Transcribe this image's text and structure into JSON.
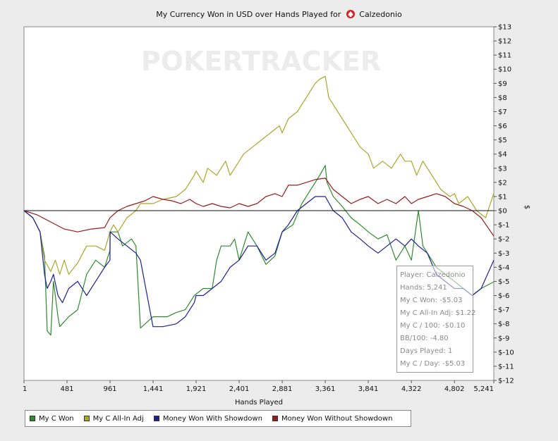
{
  "title": {
    "prefix": "My Currency Won in USD over Hands Played for",
    "player": "Calzedonio"
  },
  "watermark": "POKERTRACKER",
  "colors": {
    "my_c_won": "#2e8b2e",
    "my_c_allin_adj": "#a8a828",
    "showdown": "#1e1e96",
    "non_showdown": "#9a1a1a"
  },
  "tooltip": {
    "lines": [
      "Player: Calzedonio",
      "Hands: 5,241",
      "My C Won: -$5.03",
      "My C All-In Adj: $1.22",
      "My C / 100: -$0.10",
      "BB/100: -4.80",
      "Days Played: 1",
      "My C / Day: -$5.03"
    ]
  },
  "chart_data": {
    "type": "line",
    "title": "My Currency Won in USD over Hands Played for Calzedonio",
    "xlabel": "Hands Played",
    "ylabel": "$",
    "xlim": [
      1,
      5241
    ],
    "ylim": [
      -12,
      13
    ],
    "x_ticks": [
      1,
      481,
      961,
      1441,
      1921,
      2401,
      2881,
      3361,
      3841,
      4322,
      4802,
      5241
    ],
    "x_tick_labels": [
      "1",
      "481",
      "961",
      "1,441",
      "1,921",
      "2,401",
      "2,881",
      "3,361",
      "3,841",
      "4,322",
      "4,802",
      "5,241"
    ],
    "y_ticks": [
      13,
      12,
      11,
      10,
      9,
      8,
      7,
      6,
      5,
      4,
      3,
      2,
      1,
      0,
      -1,
      -2,
      -3,
      -4,
      -5,
      -6,
      -7,
      -8,
      -9,
      -10,
      -11,
      -12
    ],
    "y_tick_labels": [
      "$13",
      "$12",
      "$11",
      "$10",
      "$9",
      "$8",
      "$7",
      "$6",
      "$5",
      "$4",
      "$3",
      "$2",
      "$1",
      "$0",
      "$-1",
      "$-2",
      "$-3",
      "$-4",
      "$-5",
      "$-6",
      "$-7",
      "$-8",
      "$-9",
      "$-10",
      "$-11",
      "$-12"
    ],
    "legend_position": "bottom",
    "grid": false,
    "series": [
      {
        "name": "My C Won",
        "color": "#2e8b2e",
        "x": [
          1,
          100,
          180,
          230,
          260,
          300,
          330,
          380,
          400,
          500,
          600,
          700,
          800,
          900,
          960,
          962,
          1050,
          1100,
          1200,
          1250,
          1300,
          1440,
          1600,
          1700,
          1800,
          1900,
          2000,
          2100,
          2150,
          2200,
          2300,
          2350,
          2401,
          2500,
          2600,
          2700,
          2800,
          2881,
          3000,
          3100,
          3200,
          3300,
          3361,
          3380,
          3450,
          3550,
          3650,
          3750,
          3841,
          3950,
          4050,
          4150,
          4250,
          4322,
          4400,
          4450,
          4550,
          4600,
          4700,
          4802,
          4900,
          5000,
          5100,
          5241
        ],
        "y": [
          0,
          -0.5,
          -1.5,
          -3.2,
          -8.5,
          -8.8,
          -5,
          -7.5,
          -8.2,
          -7.5,
          -7,
          -4.5,
          -3.5,
          -4,
          -2.8,
          -1.5,
          -1.5,
          -2.5,
          -2,
          -2.5,
          -8.3,
          -7.5,
          -7.5,
          -7.2,
          -7,
          -6,
          -5.5,
          -5.5,
          -3.5,
          -2.5,
          -2.5,
          -2,
          -3.5,
          -1.5,
          -2.5,
          -3.8,
          -3.2,
          -1.5,
          -1,
          0.5,
          1.5,
          2.5,
          3.2,
          2,
          1,
          0.3,
          -0.5,
          -1,
          -1.5,
          -2,
          -1.7,
          -3.5,
          -2.5,
          -3.5,
          0,
          -2.5,
          -3.5,
          -4,
          -4.5,
          -5,
          -5.5,
          -6,
          -5.5,
          -5.03
        ]
      },
      {
        "name": "My C All-In Adj",
        "color": "#a8a828",
        "x": [
          1,
          100,
          180,
          230,
          300,
          350,
          400,
          450,
          500,
          600,
          700,
          800,
          900,
          960,
          1000,
          1050,
          1150,
          1250,
          1300,
          1440,
          1550,
          1700,
          1800,
          1900,
          1921,
          2000,
          2050,
          2150,
          2250,
          2300,
          2401,
          2450,
          2550,
          2650,
          2750,
          2850,
          2881,
          2950,
          3050,
          3150,
          3250,
          3300,
          3361,
          3400,
          3450,
          3550,
          3650,
          3750,
          3841,
          3900,
          4000,
          4100,
          4200,
          4250,
          4322,
          4380,
          4450,
          4550,
          4650,
          4750,
          4802,
          4850,
          4950,
          5050,
          5150,
          5241
        ],
        "y": [
          0,
          -0.5,
          -1.5,
          -3.5,
          -4.3,
          -3.5,
          -4.5,
          -3.5,
          -4.5,
          -3.7,
          -2.5,
          -2.5,
          -2.8,
          -1.5,
          -1,
          -1.5,
          -0.5,
          0,
          0.5,
          0.5,
          0.8,
          1,
          1.5,
          2.5,
          2.8,
          2,
          3,
          2.5,
          3.5,
          2.5,
          3.5,
          4,
          4.5,
          5,
          5.5,
          6,
          5.5,
          6.5,
          7,
          8,
          9,
          9.3,
          9.5,
          8,
          7.5,
          6.5,
          5.5,
          4.5,
          4,
          3,
          3.5,
          3,
          4,
          3.5,
          3.5,
          2.5,
          3.5,
          2.5,
          1.5,
          1,
          1.2,
          0.5,
          1,
          0,
          -0.5,
          1.22
        ]
      },
      {
        "name": "Money Won With Showdown",
        "color": "#1e1e96",
        "x": [
          1,
          100,
          180,
          230,
          260,
          300,
          330,
          380,
          430,
          500,
          600,
          700,
          800,
          900,
          960,
          962,
          1050,
          1150,
          1250,
          1300,
          1440,
          1550,
          1700,
          1800,
          1900,
          1921,
          2000,
          2100,
          2200,
          2300,
          2401,
          2500,
          2600,
          2700,
          2800,
          2881,
          2950,
          3050,
          3150,
          3250,
          3300,
          3361,
          3450,
          3550,
          3650,
          3750,
          3841,
          3950,
          4050,
          4150,
          4250,
          4322,
          4400,
          4500,
          4600,
          4700,
          4802,
          4900,
          5000,
          5100,
          5241
        ],
        "y": [
          0,
          -0.5,
          -1.5,
          -4.5,
          -5.5,
          -5,
          -4.5,
          -6,
          -6.5,
          -5.5,
          -5,
          -6,
          -5,
          -4,
          -3.5,
          -1.5,
          -2,
          -2.5,
          -3,
          -3.5,
          -8.2,
          -8.2,
          -8,
          -7.5,
          -6.5,
          -6,
          -6,
          -5.5,
          -5,
          -4,
          -3.5,
          -2.5,
          -2.5,
          -3.5,
          -3,
          -1.5,
          -1,
          0,
          0.5,
          1,
          1,
          1,
          0,
          -0.5,
          -1.5,
          -2,
          -2.5,
          -3,
          -2.5,
          -2,
          -2.5,
          -2,
          -2.5,
          -3,
          -4.5,
          -5,
          -5.5,
          -5.5,
          -6,
          -5.5,
          -3.5
        ]
      },
      {
        "name": "Money Won Without Showdown",
        "color": "#9a1a1a",
        "x": [
          1,
          150,
          300,
          450,
          600,
          750,
          900,
          960,
          1050,
          1150,
          1250,
          1350,
          1441,
          1550,
          1650,
          1750,
          1850,
          1921,
          2000,
          2100,
          2200,
          2300,
          2401,
          2500,
          2600,
          2700,
          2800,
          2881,
          2950,
          3050,
          3150,
          3250,
          3361,
          3450,
          3550,
          3650,
          3750,
          3841,
          3950,
          4050,
          4150,
          4250,
          4322,
          4400,
          4500,
          4600,
          4700,
          4802,
          4900,
          5000,
          5100,
          5241
        ],
        "y": [
          0,
          -0.3,
          -0.8,
          -1.3,
          -1.5,
          -1.3,
          -1.2,
          -0.5,
          0,
          0.3,
          0.5,
          0.7,
          1,
          0.8,
          0.7,
          0.5,
          0.8,
          0.5,
          0.3,
          0.5,
          0.3,
          0.2,
          0.5,
          0.3,
          0.5,
          1,
          1.2,
          1,
          1.8,
          1.8,
          2,
          2.2,
          2.3,
          1.5,
          1,
          0.5,
          0.8,
          1,
          0.5,
          0.8,
          0.5,
          1,
          0.5,
          0.8,
          1,
          1.2,
          1,
          0.5,
          0.3,
          0,
          -0.5,
          -1.8
        ]
      }
    ]
  }
}
